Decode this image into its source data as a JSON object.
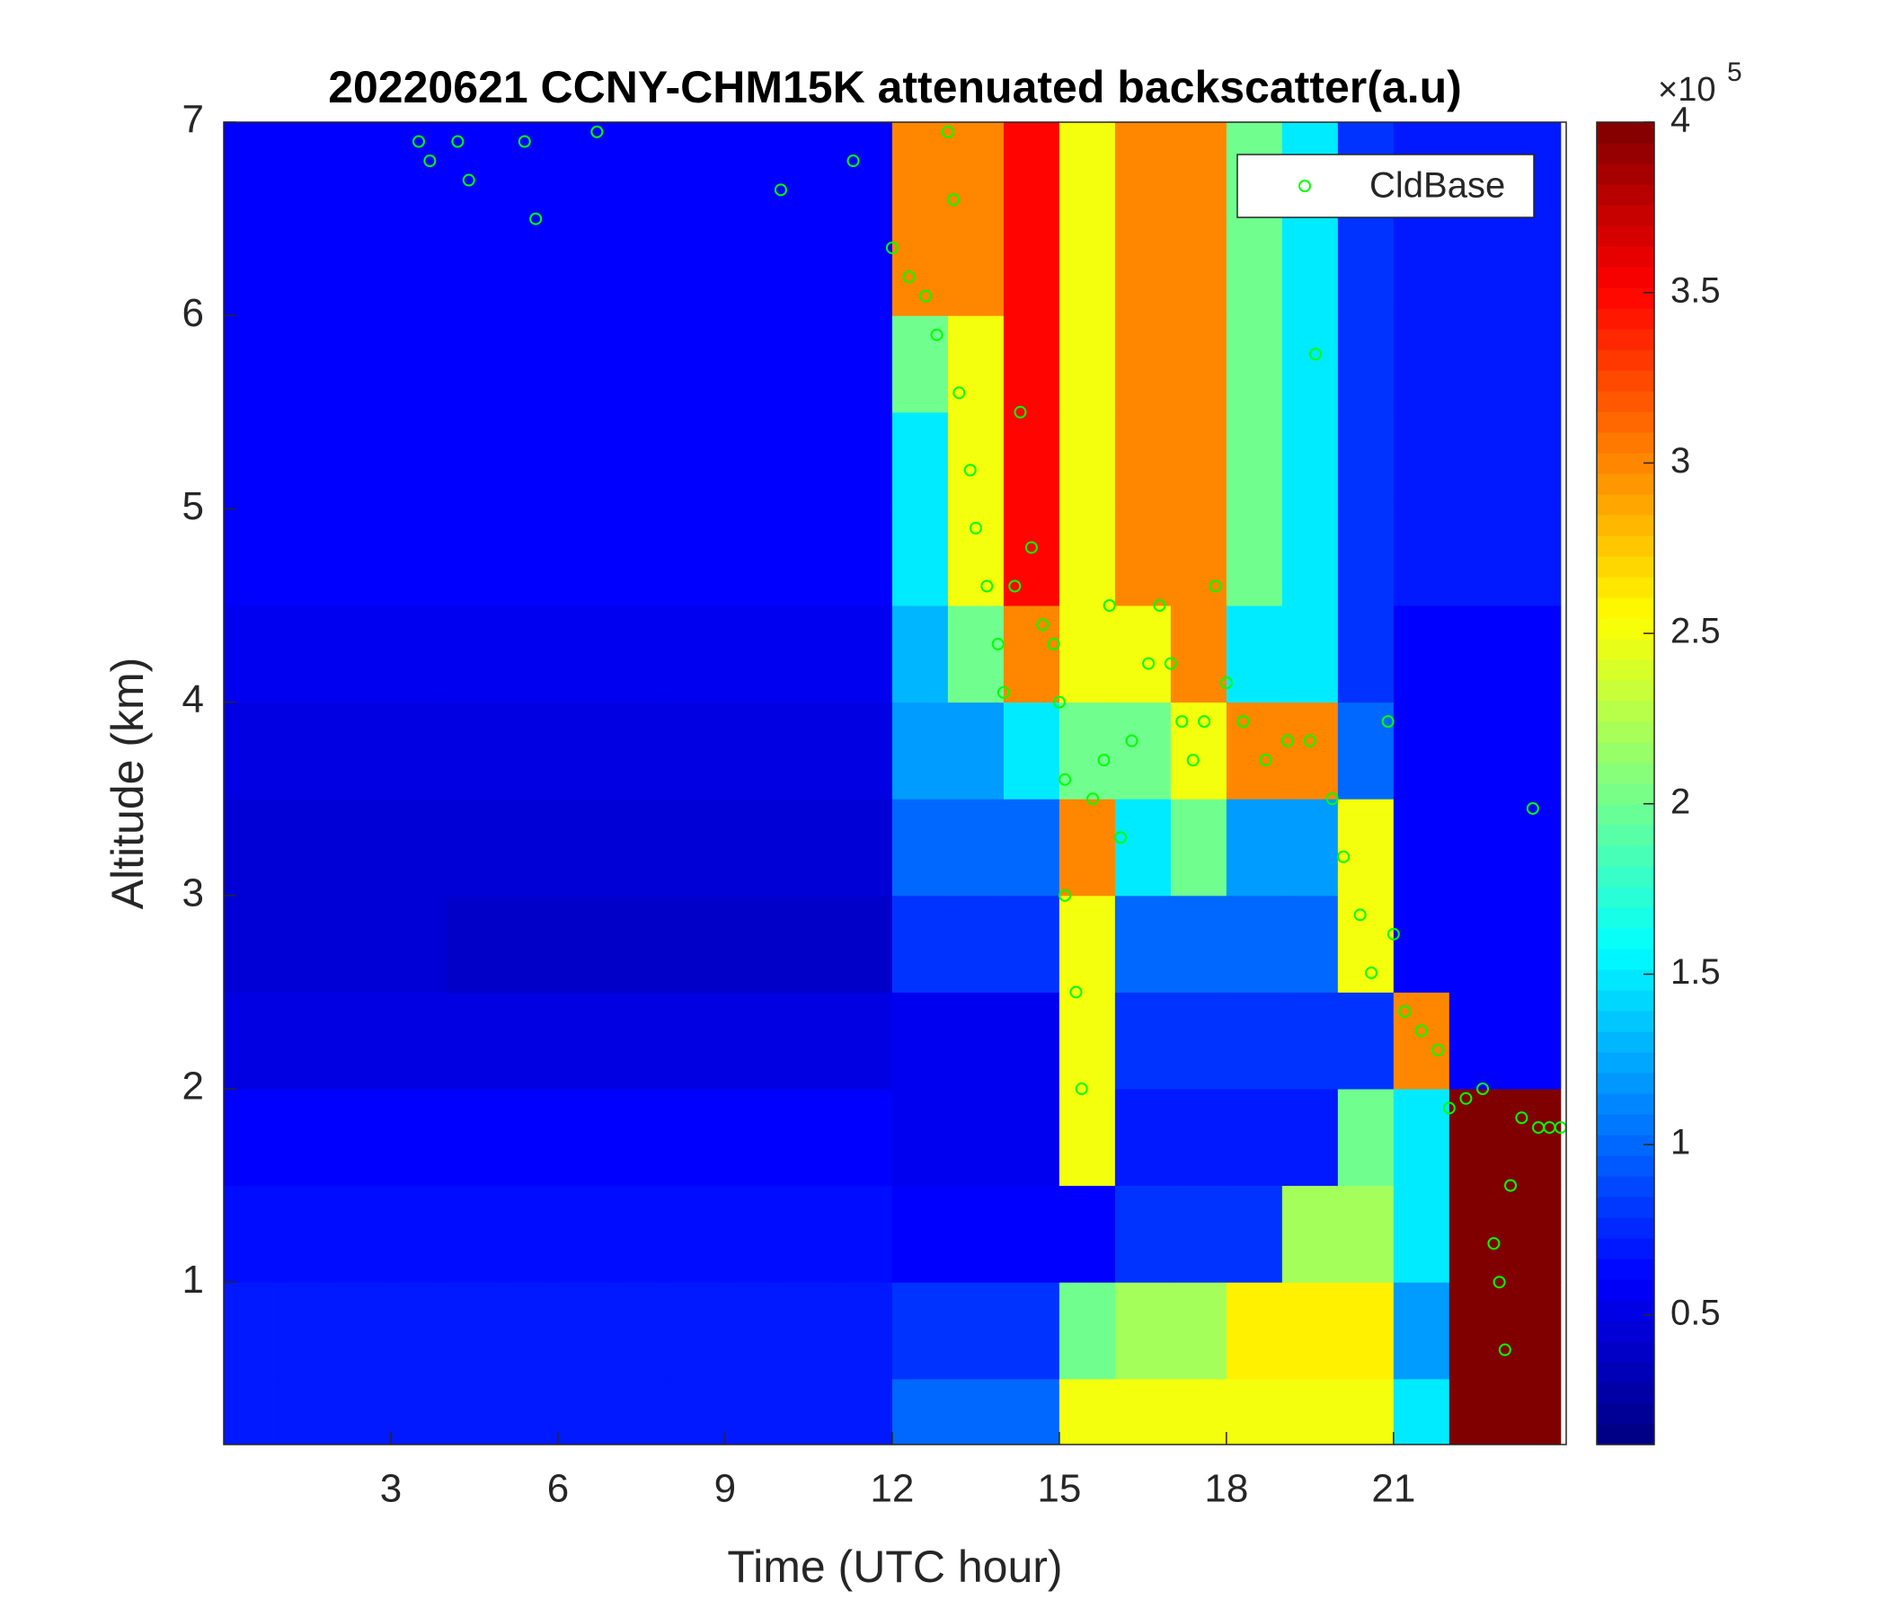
{
  "chart_data": {
    "type": "heatmap",
    "title": "20220621 CCNY-CHM15K attenuated backscatter(a.u)",
    "xlabel": "Time (UTC hour)",
    "ylabel": "Altitude (km)",
    "xlim": [
      0,
      24.1
    ],
    "ylim": [
      0.16,
      7
    ],
    "xticks": [
      3,
      6,
      9,
      12,
      15,
      18,
      21
    ],
    "yticks": [
      1,
      2,
      3,
      4,
      5,
      6,
      7
    ],
    "colormap": "jet",
    "x_edges": [
      0,
      1,
      2,
      3,
      4,
      5,
      6,
      7,
      8,
      9,
      10,
      11,
      12,
      13,
      14,
      15,
      16,
      17,
      18,
      19,
      20,
      21,
      22,
      23,
      24
    ],
    "y_edges": [
      0.16,
      0.5,
      1,
      1.5,
      2,
      2.5,
      3,
      3.5,
      4,
      4.5,
      5,
      5.5,
      6,
      6.5,
      7
    ],
    "z": [
      [
        70000,
        70000,
        70000,
        70000,
        70000,
        70000,
        70000,
        70000,
        70000,
        70000,
        70000,
        70000,
        100000,
        100000,
        100000,
        250000,
        250000,
        250000,
        250000,
        250000,
        250000,
        150000,
        400000,
        400000
      ],
      [
        70000,
        70000,
        70000,
        70000,
        70000,
        70000,
        70000,
        70000,
        70000,
        70000,
        70000,
        70000,
        80000,
        80000,
        80000,
        200000,
        220000,
        220000,
        260000,
        260000,
        260000,
        120000,
        400000,
        400000
      ],
      [
        65000,
        65000,
        65000,
        65000,
        65000,
        65000,
        65000,
        65000,
        65000,
        65000,
        65000,
        65000,
        60000,
        60000,
        60000,
        60000,
        80000,
        80000,
        80000,
        220000,
        220000,
        150000,
        400000,
        400000
      ],
      [
        60000,
        60000,
        60000,
        60000,
        60000,
        60000,
        60000,
        60000,
        60000,
        60000,
        60000,
        60000,
        55000,
        55000,
        55000,
        250000,
        70000,
        70000,
        70000,
        70000,
        200000,
        150000,
        400000,
        400000
      ],
      [
        50000,
        50000,
        50000,
        50000,
        50000,
        50000,
        50000,
        50000,
        50000,
        50000,
        50000,
        50000,
        55000,
        55000,
        55000,
        250000,
        80000,
        80000,
        80000,
        80000,
        80000,
        300000,
        60000,
        60000
      ],
      [
        45000,
        45000,
        45000,
        45000,
        40000,
        40000,
        40000,
        40000,
        40000,
        40000,
        40000,
        40000,
        80000,
        80000,
        80000,
        250000,
        100000,
        100000,
        100000,
        100000,
        250000,
        60000,
        60000,
        60000
      ],
      [
        45000,
        45000,
        45000,
        45000,
        45000,
        45000,
        45000,
        45000,
        45000,
        45000,
        45000,
        45000,
        100000,
        100000,
        100000,
        300000,
        150000,
        200000,
        120000,
        120000,
        250000,
        60000,
        60000,
        60000
      ],
      [
        50000,
        50000,
        50000,
        50000,
        50000,
        50000,
        50000,
        50000,
        50000,
        50000,
        50000,
        50000,
        120000,
        120000,
        150000,
        200000,
        200000,
        250000,
        300000,
        300000,
        100000,
        60000,
        60000,
        60000
      ],
      [
        55000,
        55000,
        55000,
        55000,
        55000,
        55000,
        55000,
        55000,
        55000,
        55000,
        55000,
        55000,
        130000,
        200000,
        300000,
        250000,
        250000,
        300000,
        150000,
        150000,
        80000,
        60000,
        60000,
        60000
      ],
      [
        60000,
        60000,
        60000,
        60000,
        60000,
        60000,
        60000,
        60000,
        60000,
        60000,
        60000,
        60000,
        150000,
        250000,
        350000,
        250000,
        300000,
        300000,
        200000,
        150000,
        80000,
        70000,
        70000,
        70000
      ],
      [
        60000,
        60000,
        60000,
        60000,
        60000,
        60000,
        60000,
        60000,
        60000,
        60000,
        60000,
        60000,
        150000,
        250000,
        350000,
        250000,
        300000,
        300000,
        200000,
        150000,
        80000,
        70000,
        70000,
        70000
      ],
      [
        60000,
        60000,
        60000,
        60000,
        60000,
        60000,
        60000,
        60000,
        60000,
        60000,
        60000,
        60000,
        200000,
        250000,
        350000,
        250000,
        300000,
        300000,
        200000,
        150000,
        80000,
        70000,
        70000,
        70000
      ],
      [
        60000,
        60000,
        60000,
        60000,
        60000,
        60000,
        60000,
        60000,
        60000,
        60000,
        60000,
        60000,
        300000,
        300000,
        350000,
        250000,
        300000,
        300000,
        200000,
        150000,
        80000,
        70000,
        70000,
        70000
      ],
      [
        60000,
        60000,
        60000,
        60000,
        60000,
        60000,
        60000,
        60000,
        60000,
        60000,
        60000,
        60000,
        300000,
        300000,
        350000,
        250000,
        300000,
        300000,
        200000,
        150000,
        80000,
        70000,
        70000,
        70000
      ]
    ],
    "colorbar": {
      "lim": [
        12000,
        400000
      ],
      "ticks": [
        {
          "value": 50000,
          "label": "0.5"
        },
        {
          "value": 100000,
          "label": "1"
        },
        {
          "value": 150000,
          "label": "1.5"
        },
        {
          "value": 200000,
          "label": "2"
        },
        {
          "value": 250000,
          "label": "2.5"
        },
        {
          "value": 300000,
          "label": "3"
        },
        {
          "value": 350000,
          "label": "3.5"
        },
        {
          "value": 400000,
          "label": "4"
        }
      ],
      "multiplier": "×10",
      "exponent": "5"
    },
    "legend": "northeast",
    "series": [
      {
        "name": "CldBase",
        "type": "scatter",
        "color": "#00ff00",
        "x": [
          3.5,
          3.7,
          4.2,
          4.4,
          5.4,
          5.6,
          6.7,
          10,
          11.3,
          12.0,
          12.3,
          12.6,
          12.8,
          13.0,
          13.1,
          13.2,
          13.4,
          13.5,
          13.7,
          13.9,
          14.0,
          14.2,
          14.3,
          14.5,
          14.7,
          14.9,
          15.0,
          15.1,
          15.1,
          15.3,
          15.4,
          15.6,
          15.8,
          15.9,
          16.1,
          16.3,
          16.6,
          16.8,
          17.0,
          17.2,
          17.4,
          17.6,
          17.8,
          18.0,
          18.3,
          18.7,
          19.1,
          19.5,
          19.6,
          19.9,
          20.1,
          20.4,
          20.6,
          20.9,
          21.0,
          21.2,
          21.5,
          21.8,
          22.0,
          22.3,
          22.6,
          22.8,
          22.9,
          23.0,
          23.1,
          23.3,
          23.5,
          23.6,
          23.8,
          24.0
        ],
        "y": [
          6.9,
          6.8,
          6.9,
          6.7,
          6.9,
          6.5,
          6.95,
          6.65,
          6.8,
          6.35,
          6.2,
          6.1,
          5.9,
          6.95,
          6.6,
          5.6,
          5.2,
          4.9,
          4.6,
          4.3,
          4.05,
          4.6,
          5.5,
          4.8,
          4.4,
          4.3,
          4.0,
          3.6,
          3.0,
          2.5,
          2.0,
          3.5,
          3.7,
          4.5,
          3.3,
          3.8,
          4.2,
          4.5,
          4.2,
          3.9,
          3.7,
          3.9,
          4.6,
          4.1,
          3.9,
          3.7,
          3.8,
          3.8,
          5.8,
          3.5,
          3.2,
          2.9,
          2.6,
          3.9,
          2.8,
          2.4,
          2.3,
          2.2,
          1.9,
          1.95,
          2.0,
          1.2,
          1.0,
          0.65,
          1.5,
          1.85,
          3.45,
          1.8,
          1.8,
          1.8
        ]
      }
    ]
  }
}
